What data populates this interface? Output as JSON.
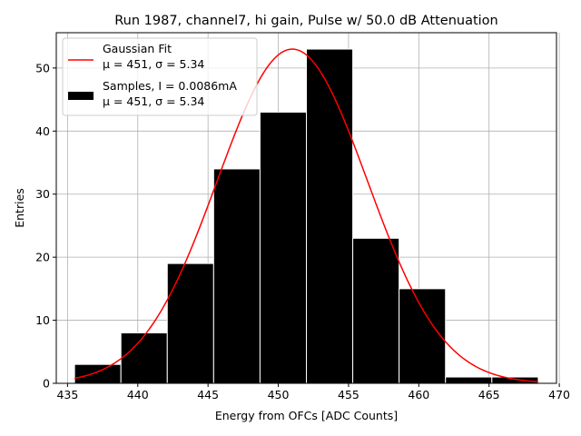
{
  "chart_data": {
    "type": "bar",
    "title": "Run 1987, channel7, hi gain, Pulse w/ 50.0 dB Attenuation",
    "xlabel": "Energy from OFCs [ADC Counts]",
    "ylabel": "Entries",
    "xlim": [
      434.2,
      469.8
    ],
    "ylim": [
      0,
      55.6
    ],
    "xticks": [
      435,
      440,
      445,
      450,
      455,
      460,
      465,
      470
    ],
    "yticks": [
      0,
      10,
      20,
      30,
      40,
      50
    ],
    "grid": true,
    "legend_position": "top-left",
    "bin_edges": [
      435.5,
      438.8,
      442.1,
      445.4,
      448.7,
      452.0,
      455.3,
      458.6,
      461.9,
      465.2,
      468.5
    ],
    "values": [
      3,
      8,
      19,
      34,
      43,
      53,
      23,
      15,
      1,
      1
    ],
    "series": [
      {
        "kind": "line",
        "label_line1": "Gaussian Fit",
        "label_line2": "μ = 451, σ = 5.34",
        "mu": 451,
        "sigma": 5.34,
        "amplitude": 53,
        "x_range": [
          435.5,
          468.5
        ],
        "color": "#ff0000"
      },
      {
        "kind": "histogram",
        "label_line1": "Samples, I = 0.0086mA",
        "label_line2": "μ = 451, σ = 5.34",
        "color": "#000000"
      }
    ]
  }
}
